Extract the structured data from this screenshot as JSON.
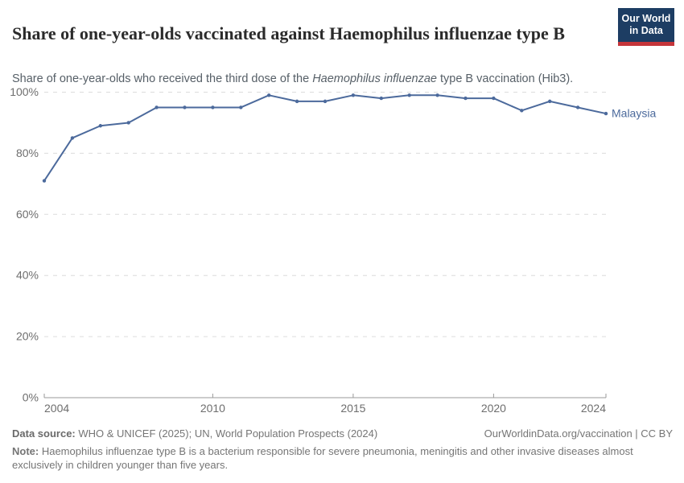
{
  "header": {
    "title": "Share of one-year-olds vaccinated against Haemophilus influenzae type B",
    "subtitle_prefix": "Share of one-year-olds who received the third dose of the ",
    "subtitle_italic": "Haemophilus influenzae",
    "subtitle_suffix": " type B vaccination (Hib3).",
    "logo_line1": "Our World",
    "logo_line2": "in Data"
  },
  "colors": {
    "series_blue": "#4C6A9C",
    "logo_navy": "#1d3d63",
    "logo_red": "#c5353a",
    "gridline": "#dcdcdc",
    "axis": "#9a9a9a",
    "tick_label": "#6e6e6e"
  },
  "chart_data": {
    "type": "line",
    "title": "Share of one-year-olds vaccinated against Haemophilus influenzae type B",
    "xlabel": "",
    "ylabel": "",
    "xlim": [
      2004,
      2024
    ],
    "ylim": [
      0,
      100
    ],
    "grid": "horizontal-dashed",
    "legend": "line-end-label",
    "xticks": [
      2004,
      2010,
      2015,
      2020,
      2024
    ],
    "yticks": [
      0,
      20,
      40,
      60,
      80,
      100
    ],
    "ytick_suffix": "%",
    "series": [
      {
        "name": "Malaysia",
        "color": "#4C6A9C",
        "x": [
          2004,
          2005,
          2006,
          2007,
          2008,
          2009,
          2010,
          2011,
          2012,
          2013,
          2014,
          2015,
          2016,
          2017,
          2018,
          2019,
          2020,
          2021,
          2022,
          2023,
          2024
        ],
        "values": [
          71,
          85,
          89,
          90,
          95,
          95,
          95,
          95,
          99,
          97,
          97,
          99,
          98,
          99,
          99,
          98,
          98,
          94,
          97,
          95,
          93
        ]
      }
    ]
  },
  "footer": {
    "source_label": "Data source:",
    "source_text": " WHO & UNICEF (2025); UN, World Population Prospects (2024)",
    "link_text": "OurWorldinData.org/vaccination | CC BY",
    "note_label": "Note:",
    "note_text": " Haemophilus influenzae type B is a bacterium responsible for severe pneumonia, meningitis and other invasive diseases almost exclusively in children younger than five years."
  }
}
